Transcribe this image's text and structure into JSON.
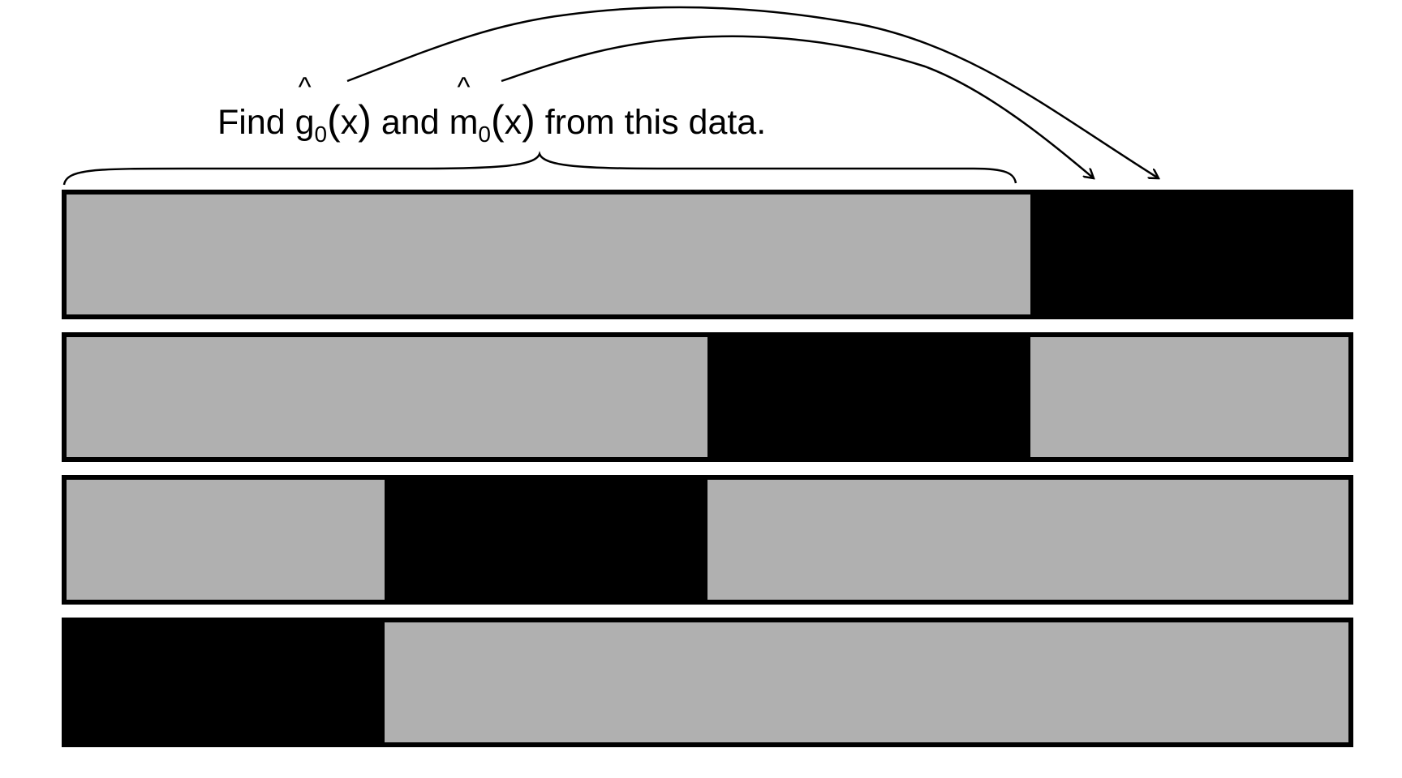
{
  "caption": {
    "lead": "Find ",
    "g_symbol": "g",
    "m_symbol": "m",
    "hat": "^",
    "subscript": "0",
    "open_paren": "(",
    "argument": "x",
    "close_paren": ")",
    "connector": " and ",
    "tail": " from this data."
  },
  "diagram_data": {
    "folds": 4,
    "segments_per_fold": 4,
    "rows": [
      {
        "held_out_segment": 4
      },
      {
        "held_out_segment": 3
      },
      {
        "held_out_segment": 2
      },
      {
        "held_out_segment": 1
      }
    ],
    "brace_spans_row": 1,
    "brace_spans_segments": [
      1,
      3
    ],
    "arrows_point_to_segment": 4,
    "arrow_count": 2
  },
  "colors": {
    "train_fill": "#b0b0b0",
    "held_out_fill": "#000000",
    "border": "#000000",
    "background": "#ffffff"
  }
}
